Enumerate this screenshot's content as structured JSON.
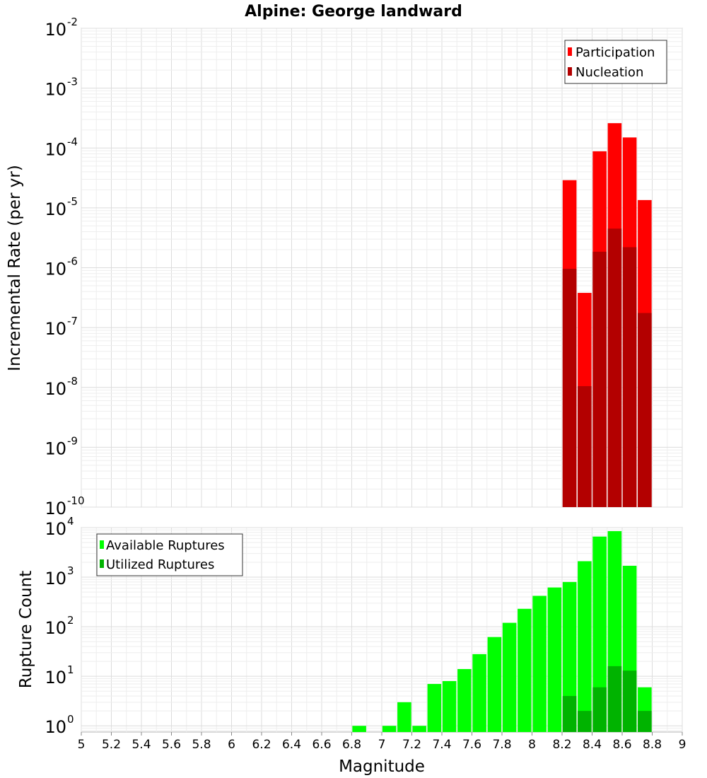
{
  "title": "Alpine: George landward",
  "chart_data": [
    {
      "type": "bar",
      "ylabel": "Incremental Rate (per yr)",
      "xlim": [
        5,
        9
      ],
      "ylim": [
        1e-10,
        0.01
      ],
      "yscale": "log",
      "y_tick_exponents": [
        "-10",
        "-9",
        "-8",
        "-7",
        "-6",
        "-5",
        "-4",
        "-3",
        "-2"
      ],
      "y_tick_base": "10",
      "grid": true,
      "legend_position": "top-right",
      "x": [
        8.25,
        8.35,
        8.45,
        8.55,
        8.65,
        8.75
      ],
      "series": [
        {
          "name": "Participation",
          "color": "#ff0000",
          "values": [
            2.9e-05,
            3.8e-07,
            8.8e-05,
            0.00026,
            0.00015,
            1.35e-05
          ]
        },
        {
          "name": "Nucleation",
          "color": "#b30000",
          "values": [
            9.6e-07,
            1.05e-08,
            1.85e-06,
            4.5e-06,
            2.2e-06,
            1.75e-07
          ]
        }
      ]
    },
    {
      "type": "bar",
      "xlabel": "Magnitude",
      "ylabel": "Rupture Count",
      "xlim": [
        5,
        9
      ],
      "ylim": [
        0.75,
        10000
      ],
      "yscale": "log",
      "y_tick_exponents": [
        "0",
        "1",
        "2",
        "3",
        "4"
      ],
      "y_tick_base": "10",
      "x_ticks": [
        "5",
        "5.2",
        "5.4",
        "5.6",
        "5.8",
        "6",
        "6.2",
        "6.4",
        "6.6",
        "6.8",
        "7",
        "7.2",
        "7.4",
        "7.6",
        "7.8",
        "8",
        "8.2",
        "8.4",
        "8.6",
        "8.8",
        "9"
      ],
      "grid": true,
      "legend_position": "top-left",
      "x": [
        6.85,
        7.05,
        7.15,
        7.25,
        7.35,
        7.45,
        7.55,
        7.65,
        7.75,
        7.85,
        7.95,
        8.05,
        8.15,
        8.25,
        8.35,
        8.45,
        8.55,
        8.65,
        8.75
      ],
      "series": [
        {
          "name": "Available Ruptures",
          "color": "#00ff00",
          "values": [
            1,
            1,
            3,
            1,
            7,
            8,
            14,
            28,
            62,
            120,
            230,
            420,
            620,
            800,
            2100,
            6600,
            8500,
            1700,
            6
          ]
        },
        {
          "name": "Utilized Ruptures",
          "color": "#00b300",
          "values": [
            0,
            0,
            0,
            0,
            0,
            0,
            0,
            0,
            0,
            0,
            0,
            0,
            0,
            4,
            2,
            6,
            16,
            13,
            2
          ]
        }
      ]
    }
  ]
}
